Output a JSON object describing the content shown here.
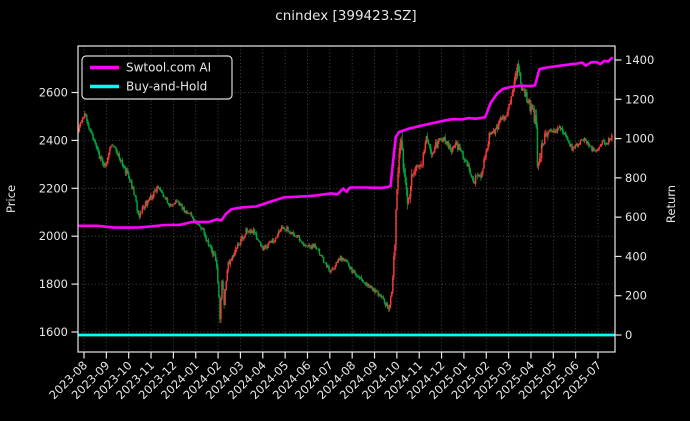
{
  "window": {
    "title": "cnindex [399423.SZ]"
  },
  "chart_data": {
    "type": "candlestick",
    "title": "cnindex [399423.SZ]",
    "background": "#000000",
    "text_color": "#e6e6e6",
    "grid": {
      "visible": true,
      "style": "dotted",
      "color": "#565656"
    },
    "x_axis": {
      "unit": "month",
      "label_rotation_deg": 45,
      "domain_months": [
        -0.28,
        23.77
      ],
      "tick_labels": [
        "2023-08",
        "2023-09",
        "2023-10",
        "2023-11",
        "2023-12",
        "2024-01",
        "2024-02",
        "2024-03",
        "2024-04",
        "2024-05",
        "2024-06",
        "2024-07",
        "2024-08",
        "2024-09",
        "2024-10",
        "2024-11",
        "2024-12",
        "2025-01",
        "2025-02",
        "2025-03",
        "2025-04",
        "2025-05",
        "2025-06",
        "2025-07"
      ]
    },
    "left_axis": {
      "label": "Price",
      "ticks": [
        1600,
        1800,
        2000,
        2200,
        2400,
        2600
      ],
      "value_range": [
        1517,
        2794
      ]
    },
    "right_axis": {
      "label": "Return",
      "ticks": [
        0,
        200,
        400,
        600,
        800,
        1000,
        1200,
        1400
      ],
      "value_range": [
        -87,
        1472
      ]
    },
    "legend": {
      "position": "upper_left",
      "entries": [
        {
          "label": "Swtool.com AI",
          "color": "#ff00ff"
        },
        {
          "label": "Buy-and-Hold",
          "color": "#00ffff"
        }
      ]
    },
    "series": [
      {
        "name": "Swtool.com AI",
        "type": "line",
        "axis": "right",
        "color": "#ff00ff",
        "width": 2.6,
        "points": [
          [
            -0.28,
            556
          ],
          [
            0.6,
            556
          ],
          [
            1.35,
            547
          ],
          [
            2.4,
            547
          ],
          [
            3.0,
            553
          ],
          [
            3.6,
            560
          ],
          [
            4.3,
            561
          ],
          [
            4.85,
            576
          ],
          [
            5.6,
            576
          ],
          [
            5.95,
            589
          ],
          [
            6.15,
            584
          ],
          [
            6.35,
            616
          ],
          [
            6.6,
            641
          ],
          [
            7.1,
            650
          ],
          [
            7.7,
            654
          ],
          [
            8.3,
            677
          ],
          [
            8.95,
            701
          ],
          [
            9.6,
            704
          ],
          [
            10.3,
            709
          ],
          [
            11.05,
            721
          ],
          [
            11.35,
            717
          ],
          [
            11.6,
            746
          ],
          [
            11.75,
            729
          ],
          [
            11.9,
            751
          ],
          [
            12.6,
            751
          ],
          [
            13.3,
            749
          ],
          [
            13.62,
            754
          ],
          [
            13.72,
            760
          ],
          [
            13.82,
            870
          ],
          [
            13.95,
            1008
          ],
          [
            14.1,
            1033
          ],
          [
            14.5,
            1049
          ],
          [
            15.0,
            1063
          ],
          [
            15.6,
            1079
          ],
          [
            16.1,
            1091
          ],
          [
            16.5,
            1099
          ],
          [
            16.9,
            1097
          ],
          [
            17.2,
            1104
          ],
          [
            17.55,
            1101
          ],
          [
            17.95,
            1109
          ],
          [
            18.2,
            1182
          ],
          [
            18.5,
            1230
          ],
          [
            18.75,
            1253
          ],
          [
            19.1,
            1263
          ],
          [
            19.5,
            1269
          ],
          [
            20.0,
            1267
          ],
          [
            20.18,
            1271
          ],
          [
            20.38,
            1353
          ],
          [
            20.7,
            1362
          ],
          [
            21.1,
            1368
          ],
          [
            21.5,
            1374
          ],
          [
            22.0,
            1381
          ],
          [
            22.3,
            1386
          ],
          [
            22.45,
            1371
          ],
          [
            22.7,
            1389
          ],
          [
            22.95,
            1389
          ],
          [
            23.1,
            1379
          ],
          [
            23.3,
            1396
          ],
          [
            23.45,
            1392
          ],
          [
            23.62,
            1410
          ]
        ]
      },
      {
        "name": "Buy-and-Hold",
        "type": "line",
        "axis": "right",
        "color": "#00ffff",
        "width": 2.8,
        "points": [
          [
            -0.28,
            0
          ],
          [
            23.77,
            0
          ]
        ]
      },
      {
        "name": "cnindex daily OHLC",
        "type": "candles",
        "axis": "left",
        "up_color": "#f53838",
        "down_color": "#00a23c",
        "candle_count": 510,
        "close_keypoints": [
          [
            -0.25,
            2445
          ],
          [
            0.05,
            2505
          ],
          [
            0.35,
            2428
          ],
          [
            0.7,
            2332
          ],
          [
            0.95,
            2292
          ],
          [
            1.15,
            2362
          ],
          [
            1.35,
            2388
          ],
          [
            1.6,
            2318
          ],
          [
            1.9,
            2268
          ],
          [
            2.2,
            2195
          ],
          [
            2.45,
            2085
          ],
          [
            2.65,
            2125
          ],
          [
            2.95,
            2155
          ],
          [
            3.3,
            2208
          ],
          [
            3.6,
            2158
          ],
          [
            3.85,
            2128
          ],
          [
            4.15,
            2148
          ],
          [
            4.45,
            2112
          ],
          [
            4.75,
            2090
          ],
          [
            5.0,
            2060
          ],
          [
            5.3,
            2025
          ],
          [
            5.55,
            1975
          ],
          [
            5.8,
            1925
          ],
          [
            5.95,
            1860
          ],
          [
            6.03,
            1765
          ],
          [
            6.09,
            1645
          ],
          [
            6.18,
            1820
          ],
          [
            6.26,
            1705
          ],
          [
            6.45,
            1885
          ],
          [
            6.9,
            1962
          ],
          [
            7.3,
            2028
          ],
          [
            7.55,
            2022
          ],
          [
            8.0,
            1948
          ],
          [
            8.45,
            1978
          ],
          [
            8.9,
            2038
          ],
          [
            9.2,
            2022
          ],
          [
            9.6,
            1996
          ],
          [
            10.0,
            1952
          ],
          [
            10.35,
            1963
          ],
          [
            10.7,
            1902
          ],
          [
            11.05,
            1848
          ],
          [
            11.45,
            1913
          ],
          [
            11.75,
            1892
          ],
          [
            12.0,
            1855
          ],
          [
            12.3,
            1830
          ],
          [
            12.65,
            1802
          ],
          [
            13.0,
            1775
          ],
          [
            13.35,
            1740
          ],
          [
            13.58,
            1703
          ],
          [
            13.7,
            1715
          ],
          [
            13.8,
            1792
          ],
          [
            13.9,
            1955
          ],
          [
            14.0,
            2180
          ],
          [
            14.12,
            2350
          ],
          [
            14.2,
            2450
          ],
          [
            14.28,
            2290
          ],
          [
            14.4,
            2180
          ],
          [
            14.52,
            2152
          ],
          [
            14.66,
            2238
          ],
          [
            14.88,
            2308
          ],
          [
            15.1,
            2288
          ],
          [
            15.32,
            2418
          ],
          [
            15.6,
            2348
          ],
          [
            15.85,
            2396
          ],
          [
            16.1,
            2410
          ],
          [
            16.4,
            2356
          ],
          [
            16.7,
            2380
          ],
          [
            17.0,
            2332
          ],
          [
            17.2,
            2288
          ],
          [
            17.45,
            2228
          ],
          [
            17.6,
            2258
          ],
          [
            17.75,
            2242
          ],
          [
            17.95,
            2335
          ],
          [
            18.15,
            2428
          ],
          [
            18.45,
            2442
          ],
          [
            18.7,
            2490
          ],
          [
            19.0,
            2528
          ],
          [
            19.25,
            2652
          ],
          [
            19.38,
            2700
          ],
          [
            19.6,
            2618
          ],
          [
            19.85,
            2568
          ],
          [
            20.08,
            2512
          ],
          [
            20.24,
            2490
          ],
          [
            20.3,
            2282
          ],
          [
            20.4,
            2332
          ],
          [
            20.52,
            2392
          ],
          [
            20.72,
            2428
          ],
          [
            21.05,
            2446
          ],
          [
            21.35,
            2448
          ],
          [
            21.65,
            2408
          ],
          [
            21.85,
            2362
          ],
          [
            22.1,
            2388
          ],
          [
            22.4,
            2402
          ],
          [
            22.7,
            2368
          ],
          [
            22.95,
            2356
          ],
          [
            23.2,
            2392
          ],
          [
            23.45,
            2396
          ],
          [
            23.62,
            2422
          ]
        ],
        "daily_range_keypoints": [
          [
            -0.25,
            40
          ],
          [
            1.5,
            34
          ],
          [
            2.45,
            44
          ],
          [
            3.5,
            28
          ],
          [
            5.0,
            28
          ],
          [
            5.7,
            40
          ],
          [
            6.05,
            70
          ],
          [
            6.3,
            55
          ],
          [
            7.2,
            36
          ],
          [
            8.5,
            30
          ],
          [
            10.0,
            28
          ],
          [
            11.5,
            30
          ],
          [
            13.0,
            28
          ],
          [
            13.6,
            34
          ],
          [
            13.85,
            70
          ],
          [
            14.1,
            110
          ],
          [
            14.25,
            130
          ],
          [
            14.5,
            85
          ],
          [
            15.0,
            60
          ],
          [
            15.6,
            55
          ],
          [
            16.2,
            48
          ],
          [
            17.2,
            42
          ],
          [
            17.6,
            48
          ],
          [
            18.2,
            45
          ],
          [
            19.0,
            48
          ],
          [
            19.38,
            85
          ],
          [
            19.9,
            48
          ],
          [
            20.28,
            100
          ],
          [
            20.6,
            52
          ],
          [
            21.3,
            36
          ],
          [
            22.0,
            32
          ],
          [
            23.0,
            32
          ],
          [
            23.62,
            34
          ]
        ]
      }
    ]
  }
}
